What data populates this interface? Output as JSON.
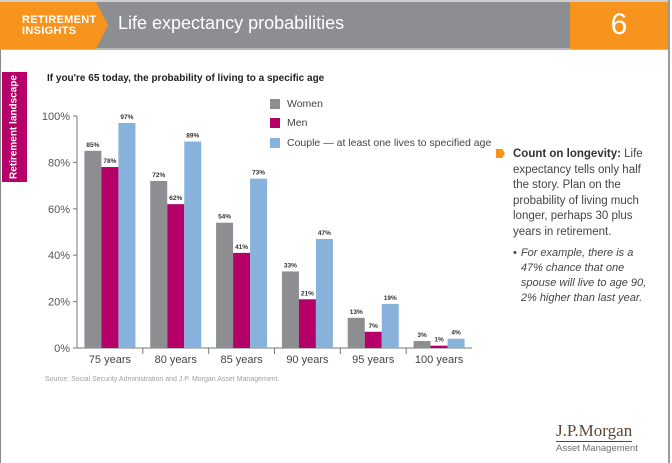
{
  "header": {
    "badge_line1": "RETIREMENT",
    "badge_line2": "INSIGHTS",
    "title": "Life expectancy probabilities",
    "page_number": "6"
  },
  "section_label": "Retirement landscape",
  "colors": {
    "accent_orange": "#f7941d",
    "header_gray": "#8c8e91",
    "section_magenta": "#b5006a",
    "women": "#8c8e91",
    "men": "#b5006a",
    "couple": "#87b2dc"
  },
  "callout": {
    "heading": "Count on longevity:",
    "body": " Life expectancy tells only half the story. Plan on the probability of living much longer, perhaps 30 plus years in retirement.",
    "bullet_symbol": "•",
    "bullet": "For example, there is a 47% chance that one spouse will live to age 90, 2% higher than last year."
  },
  "source": "Source: Social Security Administration and J.P. Morgan Asset Management.",
  "logo": {
    "name": "J.P.Morgan",
    "sub": "Asset Management"
  },
  "chart_data": {
    "type": "bar",
    "title": "If you're 65 today, the probability of living to a specific age",
    "xlabel": "",
    "ylabel": "",
    "categories": [
      "75 years",
      "80 years",
      "85 years",
      "90 years",
      "95 years",
      "100 years"
    ],
    "series": [
      {
        "name": "Women",
        "color": "#8c8e91",
        "values": [
          85,
          72,
          54,
          33,
          13,
          3
        ]
      },
      {
        "name": "Men",
        "color": "#b5006a",
        "values": [
          78,
          62,
          41,
          21,
          7,
          1
        ]
      },
      {
        "name": "Couple — at least one lives to specified age",
        "color": "#87b2dc",
        "values": [
          97,
          89,
          73,
          47,
          19,
          4
        ]
      }
    ],
    "ylim": [
      0,
      100
    ],
    "yticks": [
      0,
      20,
      40,
      60,
      80,
      100
    ],
    "ytick_labels": [
      "0%",
      "20%",
      "40%",
      "60%",
      "80%",
      "100%"
    ],
    "value_suffix": "%",
    "grid": false,
    "legend_position": "top-right"
  }
}
